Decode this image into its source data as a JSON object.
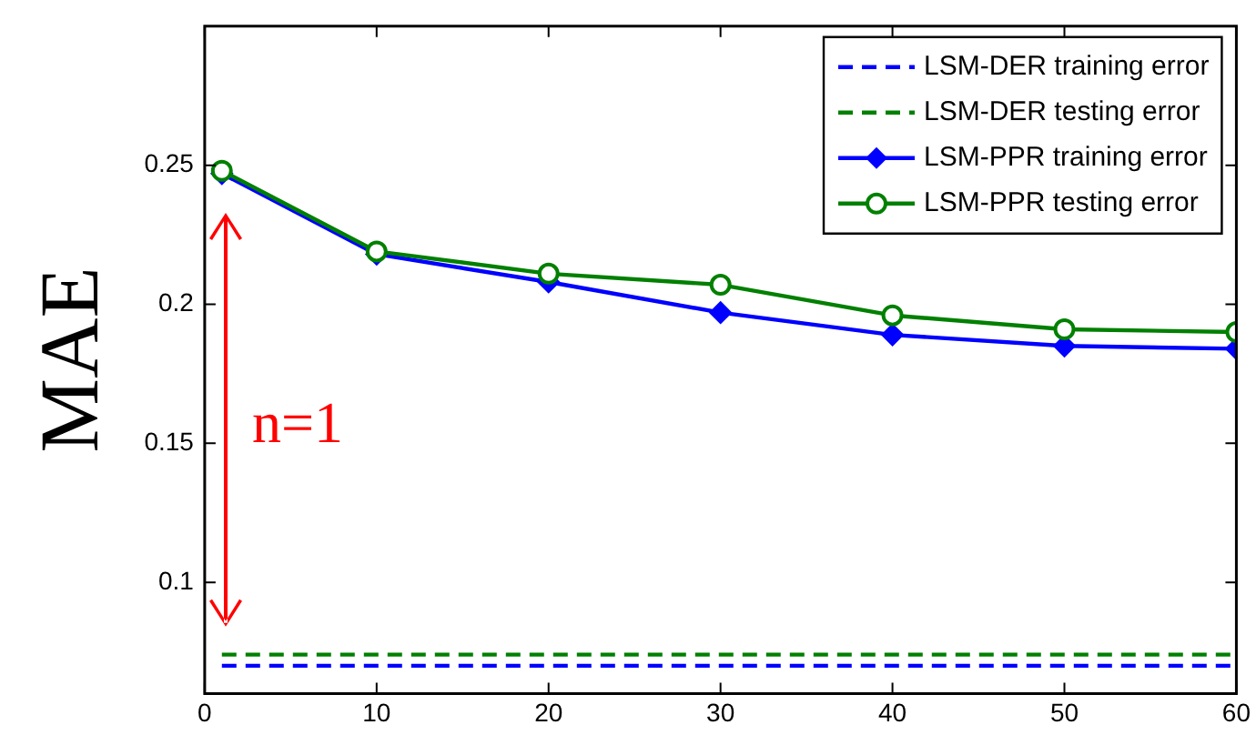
{
  "chart_data": {
    "type": "line",
    "ylabel": "MAE",
    "xlim": [
      0,
      60
    ],
    "xticks": [
      0,
      10,
      20,
      30,
      40,
      50,
      60
    ],
    "ylim": [
      0.06,
      0.3
    ],
    "yticks": [
      0.1,
      0.15,
      0.2,
      0.25
    ],
    "grid": false,
    "legend": "top right",
    "annotations": [
      "n=1"
    ],
    "series": [
      {
        "name": "LSM-DER training error",
        "color": "#0000ff",
        "x": [
          1,
          60
        ],
        "values": [
          0.07,
          0.07
        ],
        "line_style": "dashed",
        "marker": "none"
      },
      {
        "name": "LSM-DER testing error",
        "color": "#008000",
        "x": [
          1,
          60
        ],
        "values": [
          0.074,
          0.074
        ],
        "line_style": "dashed",
        "marker": "none"
      },
      {
        "name": "LSM-PPR training error",
        "color": "#0000ff",
        "x": [
          1,
          10,
          20,
          30,
          40,
          50,
          60
        ],
        "values": [
          0.247,
          0.218,
          0.208,
          0.197,
          0.189,
          0.185,
          0.184
        ],
        "line_style": "solid",
        "marker": "diamond"
      },
      {
        "name": "LSM-PPR testing error",
        "color": "#008000",
        "x": [
          1,
          10,
          20,
          30,
          40,
          50,
          60
        ],
        "values": [
          0.248,
          0.219,
          0.211,
          0.207,
          0.196,
          0.191,
          0.19
        ],
        "line_style": "solid",
        "marker": "circle"
      }
    ]
  }
}
